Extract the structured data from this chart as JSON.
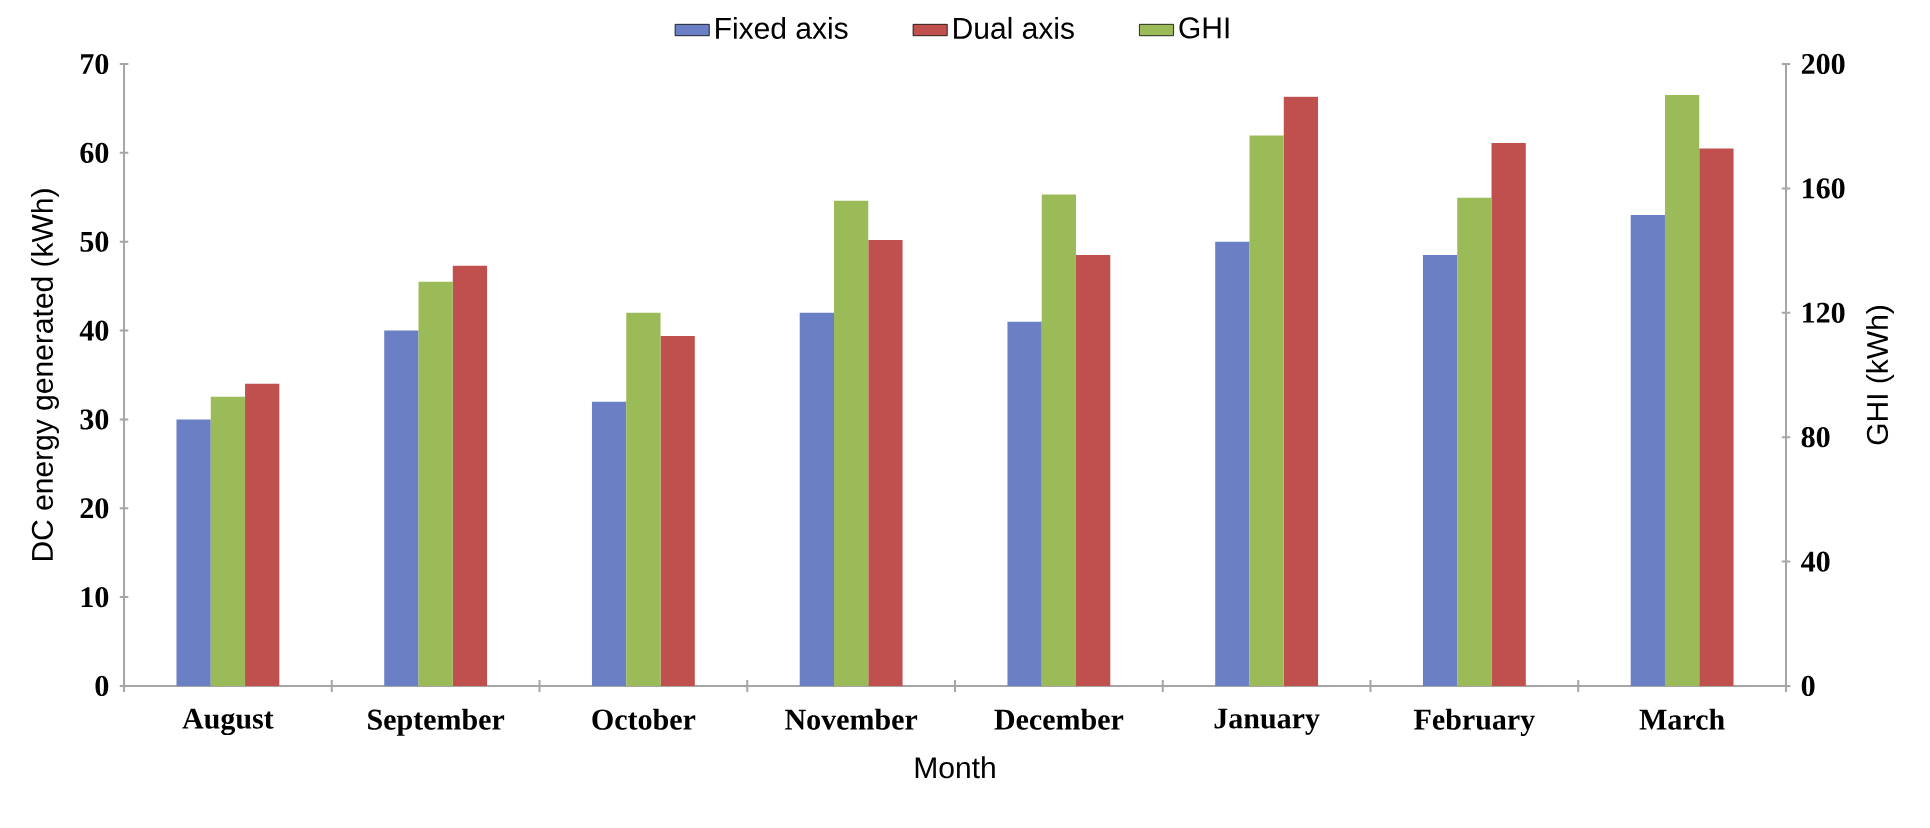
{
  "chart_data": {
    "type": "bar",
    "xlabel": "Month",
    "ylabel": "DC energy generated (kWh)",
    "y2label": "GHI (kWh)",
    "categories": [
      "August",
      "September",
      "October",
      "November",
      "December",
      "January",
      "February",
      "March"
    ],
    "series": [
      {
        "name": "Fixed axis",
        "color": "#6a7fc4",
        "values": [
          30,
          40,
          32,
          42,
          41,
          50,
          48.5,
          53
        ]
      },
      {
        "name": "GHI",
        "color": "#9bbb59",
        "axis": "y2",
        "values": [
          93,
          130,
          120,
          156,
          158,
          177,
          157,
          190
        ]
      },
      {
        "name": "Dual axis",
        "color": "#c0504d",
        "values": [
          34,
          47.3,
          39.4,
          50.2,
          48.5,
          66.3,
          61.1,
          60.5
        ]
      }
    ],
    "ylim": [
      0,
      70
    ],
    "yticks": [
      0,
      10,
      20,
      30,
      40,
      50,
      60,
      70
    ],
    "y2lim": [
      0,
      200
    ],
    "y2ticks": [
      0,
      40,
      80,
      120,
      160,
      200
    ],
    "legend": "top",
    "grid": false
  }
}
